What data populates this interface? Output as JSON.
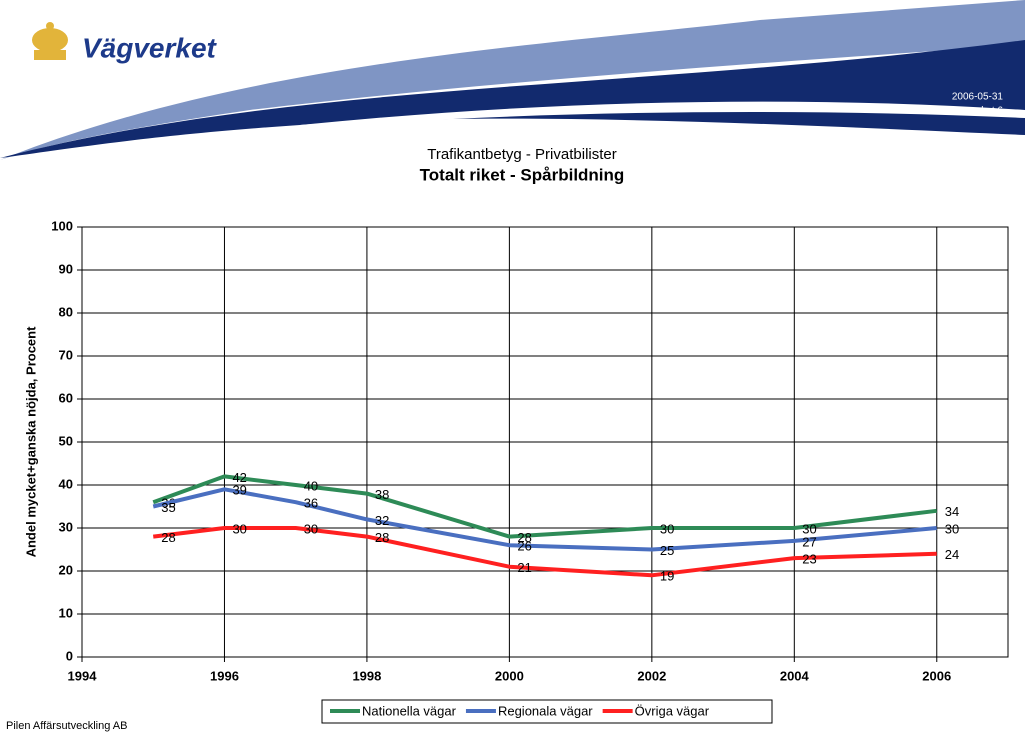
{
  "header": {
    "logo": "Vägverket",
    "date": "2006-05-31",
    "page": "Vägverket   6"
  },
  "footer": "Pilen Affärsutveckling AB",
  "chart_data": {
    "type": "line",
    "subtitle": "Trafikantbetyg - Privatbilister",
    "title": "Totalt riket - Spårbildning",
    "y_label": "Andel mycket+ganska nöjda, Procent",
    "x": [
      1995,
      1996,
      1997,
      1998,
      2000,
      2002,
      2004,
      2006
    ],
    "series": [
      {
        "name": "Nationella vägar",
        "color": "#2e8b57",
        "values": [
          36,
          42,
          40,
          38,
          28,
          30,
          30,
          34
        ]
      },
      {
        "name": "Regionala vägar",
        "color": "#4a6fc0",
        "values": [
          35,
          39,
          36,
          32,
          26,
          25,
          27,
          30
        ]
      },
      {
        "name": "Övriga vägar",
        "color": "#ff2020",
        "values": [
          28,
          30,
          30,
          28,
          21,
          19,
          23,
          24
        ]
      }
    ],
    "xlim": [
      1994,
      2007
    ],
    "xticks": [
      1994,
      1996,
      1998,
      2000,
      2002,
      2004,
      2006
    ],
    "ylim": [
      0,
      100
    ],
    "yticks": [
      0,
      10,
      20,
      30,
      40,
      50,
      60,
      70,
      80,
      90,
      100
    ],
    "grid": true,
    "legend": "bottom"
  }
}
